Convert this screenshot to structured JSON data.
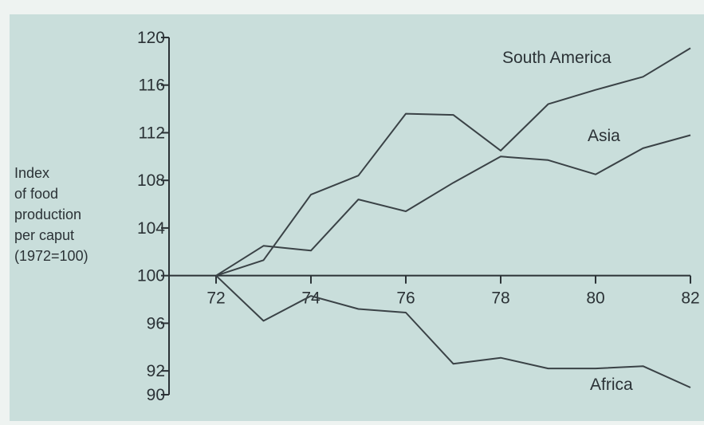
{
  "chart_data": {
    "type": "line",
    "title": "",
    "xlabel": "",
    "ylabel_lines": [
      "Index",
      "of food",
      "production",
      "per caput",
      "(1972=100)"
    ],
    "x": [
      72,
      73,
      74,
      75,
      76,
      77,
      78,
      79,
      80,
      81,
      82
    ],
    "xticks": [
      72,
      74,
      76,
      78,
      80,
      82
    ],
    "xtick_labels": [
      "72",
      "74",
      "76",
      "78",
      "80",
      "82"
    ],
    "yticks": [
      90,
      92,
      96,
      100,
      104,
      108,
      112,
      116,
      120
    ],
    "ytick_labels": [
      "90",
      "92",
      "96",
      "100",
      "104",
      "108",
      "112",
      "116",
      "120"
    ],
    "xlim": [
      72,
      82
    ],
    "ylim": [
      90,
      120
    ],
    "grid": false,
    "legend": "none",
    "series": [
      {
        "name": "South America",
        "values": [
          100,
          101.3,
          106.8,
          108.4,
          113.6,
          113.5,
          110.5,
          114.4,
          115.6,
          116.7,
          119.1
        ]
      },
      {
        "name": "Asia",
        "values": [
          100,
          102.5,
          102.1,
          106.4,
          105.4,
          107.8,
          110.0,
          109.7,
          108.5,
          110.7,
          111.8
        ]
      },
      {
        "name": "Africa",
        "values": [
          100,
          96.2,
          98.3,
          97.2,
          96.9,
          92.6,
          93.1,
          92.2,
          92.2,
          92.4,
          90.6
        ]
      }
    ]
  }
}
